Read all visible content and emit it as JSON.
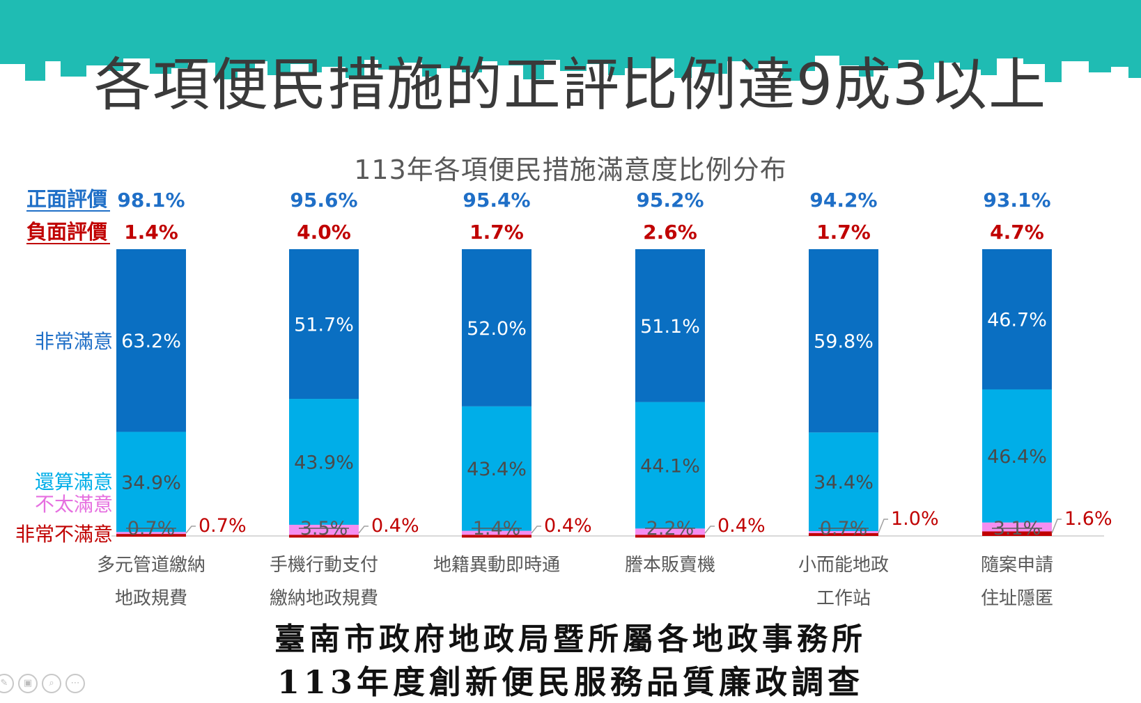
{
  "page": {
    "title": "各項便民措施的正評比例達9成3以上",
    "footer_line1": "臺南市政府地政局暨所屬各地政事務所",
    "footer_line2": "113年度創新便民服務品質廉政調查"
  },
  "colors": {
    "skyline": "#1fbcb3",
    "very_satisfied": "#0a6fc2",
    "satisfied": "#00aee8",
    "not_very_satisfied": "#f48ef0",
    "very_dissatisfied": "#c00000",
    "no_opinion": "#d9d9d9",
    "positive_label": "#1f6fc7",
    "negative_label": "#c00000"
  },
  "chart_data": {
    "type": "bar",
    "stacked": true,
    "title": "113年各項便民措施滿意度比例分布",
    "row_labels": {
      "positive": "正面評價",
      "negative": "負面評價"
    },
    "categories": [
      [
        "多元管道繳納",
        "地政規費"
      ],
      [
        "手機行動支付",
        "繳納地政規費"
      ],
      [
        "地籍異動即時通"
      ],
      [
        "謄本販賣機"
      ],
      [
        "小而能地政",
        "工作站"
      ],
      [
        "隨案申請",
        "住址隱匿"
      ]
    ],
    "positive_totals": [
      "98.1%",
      "95.6%",
      "95.4%",
      "95.2%",
      "94.2%",
      "93.1%"
    ],
    "negative_totals": [
      "1.4%",
      "4.0%",
      "1.7%",
      "2.6%",
      "1.7%",
      "4.7%"
    ],
    "series": [
      {
        "name": "非常不滿意",
        "key": "very_dissatisfied",
        "values": [
          0.7,
          0.4,
          0.4,
          0.4,
          1.0,
          1.6
        ],
        "labels": [
          "0.7%",
          "0.4%",
          "0.4%",
          "0.4%",
          "1.0%",
          "1.6%"
        ]
      },
      {
        "name": "不太滿意",
        "key": "not_very_satisfied",
        "values": [
          0.7,
          3.5,
          1.4,
          2.2,
          0.7,
          3.1
        ],
        "labels": [
          "0.7%",
          "3.5%",
          "1.4%",
          "2.2%",
          "0.7%",
          "3.1%"
        ]
      },
      {
        "name": "還算滿意",
        "key": "satisfied",
        "values": [
          34.9,
          43.9,
          43.4,
          44.1,
          34.4,
          46.4
        ],
        "labels": [
          "34.9%",
          "43.9%",
          "43.4%",
          "44.1%",
          "34.4%",
          "46.4%"
        ]
      },
      {
        "name": "非常滿意",
        "key": "very_satisfied",
        "values": [
          63.2,
          51.7,
          52.0,
          51.1,
          59.8,
          46.7
        ],
        "labels": [
          "63.2%",
          "51.7%",
          "52.0%",
          "51.1%",
          "59.8%",
          "46.7%"
        ]
      }
    ],
    "ylim": [
      0,
      100
    ],
    "grid": false
  }
}
